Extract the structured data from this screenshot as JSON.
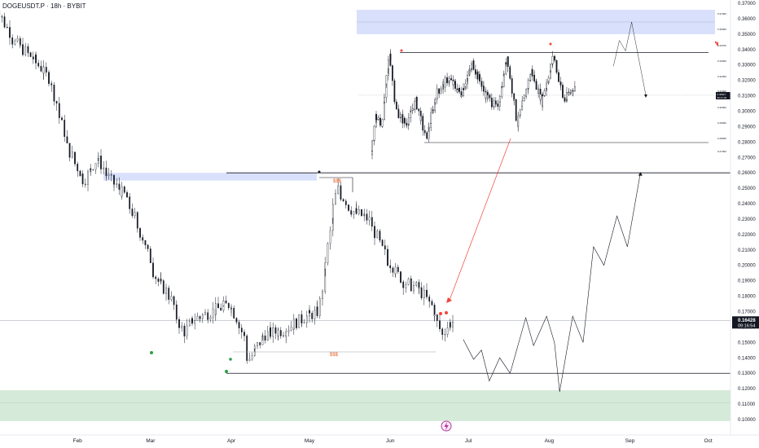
{
  "chart_data": {
    "type": "candlestick",
    "title": "DOGEUSDT.P · 18h · BYBIT",
    "colors": {
      "candle": "#131722",
      "zone_blue": "#d9e0fb",
      "zone_green": "#cfe6d2",
      "projection": "#131722",
      "arrow": "#f0453a",
      "dollar": "#e85d1f",
      "price_badge": "#131722"
    },
    "y_ticks": [
      "0.37000",
      "0.36000",
      "0.35000",
      "0.34000",
      "0.33000",
      "0.32000",
      "0.31000",
      "0.30000",
      "0.29000",
      "0.28000",
      "0.27000",
      "0.26000",
      "0.25000",
      "0.24000",
      "0.23000",
      "0.22000",
      "0.21000",
      "0.20000",
      "0.19000",
      "0.18000",
      "0.17000",
      "0.16000",
      "0.15000",
      "0.14000",
      "0.13000",
      "0.12000",
      "0.11000",
      "0.10000"
    ],
    "x_ticks": [
      "Feb",
      "Mar",
      "Apr",
      "May",
      "Jun",
      "Jul",
      "Aug",
      "Sep",
      "Oct"
    ],
    "ylim": [
      0.0985,
      0.372
    ],
    "current_price": "0.16428",
    "countdown": "09:16:54",
    "levels": [
      0.26,
      0.13
    ],
    "zones": [
      {
        "name": "supply",
        "low": 0.255,
        "high": 0.26
      },
      {
        "name": "demand",
        "low": 0.1,
        "high": 0.119
      }
    ],
    "liquidity_labels": [
      "$$$",
      "$$$"
    ],
    "price_path": [
      {
        "x": "2025-01-01",
        "y": 0.37
      },
      {
        "x": "2025-01-08",
        "y": 0.345
      },
      {
        "x": "2025-01-15",
        "y": 0.335
      },
      {
        "x": "2025-01-22",
        "y": 0.32
      },
      {
        "x": "2025-01-29",
        "y": 0.275
      },
      {
        "x": "2025-02-04",
        "y": 0.255
      },
      {
        "x": "2025-02-09",
        "y": 0.27
      },
      {
        "x": "2025-02-14",
        "y": 0.255
      },
      {
        "x": "2025-02-20",
        "y": 0.245
      },
      {
        "x": "2025-02-27",
        "y": 0.215
      },
      {
        "x": "2025-03-04",
        "y": 0.19
      },
      {
        "x": "2025-03-09",
        "y": 0.18
      },
      {
        "x": "2025-03-14",
        "y": 0.155
      },
      {
        "x": "2025-03-18",
        "y": 0.165
      },
      {
        "x": "2025-03-25",
        "y": 0.17
      },
      {
        "x": "2025-04-01",
        "y": 0.175
      },
      {
        "x": "2025-04-06",
        "y": 0.155
      },
      {
        "x": "2025-04-08",
        "y": 0.138
      },
      {
        "x": "2025-04-14",
        "y": 0.155
      },
      {
        "x": "2025-04-22",
        "y": 0.158
      },
      {
        "x": "2025-04-28",
        "y": 0.165
      },
      {
        "x": "2025-05-05",
        "y": 0.17
      },
      {
        "x": "2025-05-10",
        "y": 0.23
      },
      {
        "x": "2025-05-12",
        "y": 0.25
      },
      {
        "x": "2025-05-18",
        "y": 0.235
      },
      {
        "x": "2025-05-24",
        "y": 0.23
      },
      {
        "x": "2025-05-31",
        "y": 0.205
      },
      {
        "x": "2025-06-06",
        "y": 0.19
      },
      {
        "x": "2025-06-12",
        "y": 0.185
      },
      {
        "x": "2025-06-17",
        "y": 0.175
      },
      {
        "x": "2025-06-21",
        "y": 0.155
      },
      {
        "x": "2025-06-24",
        "y": 0.162
      },
      {
        "x": "2025-06-26",
        "y": 0.164
      }
    ],
    "projection": [
      {
        "x": "2025-06-29",
        "y": 0.152
      },
      {
        "x": "2025-07-03",
        "y": 0.139
      },
      {
        "x": "2025-07-06",
        "y": 0.145
      },
      {
        "x": "2025-07-09",
        "y": 0.125
      },
      {
        "x": "2025-07-13",
        "y": 0.14
      },
      {
        "x": "2025-07-17",
        "y": 0.13
      },
      {
        "x": "2025-07-23",
        "y": 0.166
      },
      {
        "x": "2025-07-26",
        "y": 0.148
      },
      {
        "x": "2025-07-31",
        "y": 0.167
      },
      {
        "x": "2025-08-03",
        "y": 0.15
      },
      {
        "x": "2025-08-05",
        "y": 0.118
      },
      {
        "x": "2025-08-10",
        "y": 0.167
      },
      {
        "x": "2025-08-14",
        "y": 0.15
      },
      {
        "x": "2025-08-18",
        "y": 0.212
      },
      {
        "x": "2025-08-22",
        "y": 0.2
      },
      {
        "x": "2025-08-27",
        "y": 0.232
      },
      {
        "x": "2025-08-31",
        "y": 0.212
      },
      {
        "x": "2025-09-05",
        "y": 0.26
      }
    ],
    "inset": {
      "y_ticks": [
        "0.37000",
        "0.36000",
        "0.34700",
        "0.33000",
        "0.32000",
        "0.31000",
        "0.30000",
        "0.29000",
        "0.28000",
        "0.27000"
      ],
      "current_price": "0.30917",
      "countdown": "06:17:46",
      "levels": [
        0.337,
        0.278
      ],
      "zone": {
        "low": 0.349,
        "high": 0.365
      },
      "price_path": [
        {
          "x": "2024-05-01",
          "y": 0.27
        },
        {
          "x": "2024-05-03",
          "y": 0.295
        },
        {
          "x": "2024-05-06",
          "y": 0.29
        },
        {
          "x": "2024-05-10",
          "y": 0.337
        },
        {
          "x": "2024-05-13",
          "y": 0.3
        },
        {
          "x": "2024-05-18",
          "y": 0.29
        },
        {
          "x": "2024-05-23",
          "y": 0.305
        },
        {
          "x": "2024-05-28",
          "y": 0.28
        },
        {
          "x": "2024-06-02",
          "y": 0.31
        },
        {
          "x": "2024-06-08",
          "y": 0.32
        },
        {
          "x": "2024-06-14",
          "y": 0.31
        },
        {
          "x": "2024-06-20",
          "y": 0.33
        },
        {
          "x": "2024-06-26",
          "y": 0.31
        },
        {
          "x": "2024-07-02",
          "y": 0.3
        },
        {
          "x": "2024-07-07",
          "y": 0.335
        },
        {
          "x": "2024-07-12",
          "y": 0.29
        },
        {
          "x": "2024-07-19",
          "y": 0.325
        },
        {
          "x": "2024-07-24",
          "y": 0.305
        },
        {
          "x": "2024-07-30",
          "y": 0.335
        },
        {
          "x": "2024-08-04",
          "y": 0.305
        },
        {
          "x": "2024-08-09",
          "y": 0.315
        }
      ],
      "projection": [
        {
          "x": "2024-08-28",
          "y": 0.328
        },
        {
          "x": "2024-08-31",
          "y": 0.345
        },
        {
          "x": "2024-09-03",
          "y": 0.338
        },
        {
          "x": "2024-09-06",
          "y": 0.357
        },
        {
          "x": "2024-09-13",
          "y": 0.309
        }
      ]
    }
  }
}
